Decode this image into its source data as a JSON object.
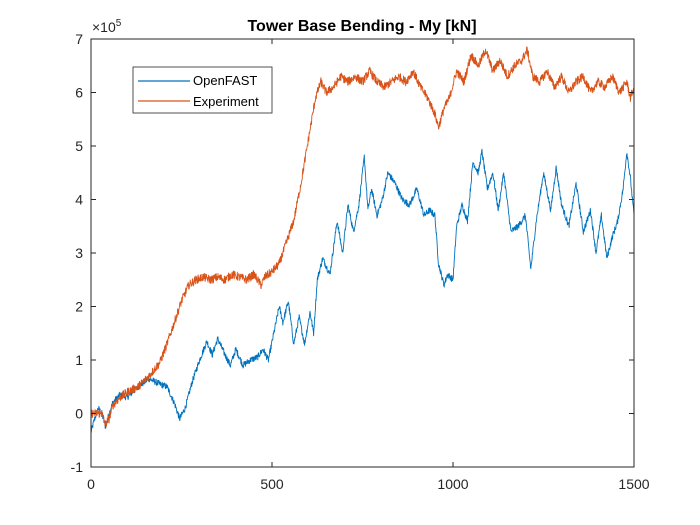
{
  "chart_data": {
    "type": "line",
    "title": "Tower Base Bending - My [kN]",
    "xlabel": "",
    "ylabel": "",
    "xlim": [
      0,
      1500
    ],
    "ylim": [
      -1,
      7
    ],
    "y_multiplier_label": "×10",
    "y_multiplier_exponent": "5",
    "x_ticks": [
      0,
      500,
      1000,
      1500
    ],
    "x_tick_labels": [
      "0",
      "500",
      "1000",
      "1500"
    ],
    "y_ticks": [
      -1,
      0,
      1,
      2,
      3,
      4,
      5,
      6,
      7
    ],
    "y_tick_labels": [
      "-1",
      "0",
      "1",
      "2",
      "3",
      "4",
      "5",
      "6",
      "7"
    ],
    "grid": false,
    "legend_position": "top-left",
    "series": [
      {
        "name": "OpenFAST",
        "color": "#0072BD",
        "noise": 0.12,
        "x": [
          0,
          10,
          20,
          30,
          40,
          50,
          60,
          80,
          100,
          130,
          160,
          190,
          210,
          230,
          245,
          260,
          280,
          300,
          320,
          335,
          350,
          370,
          385,
          400,
          420,
          440,
          460,
          475,
          490,
          505,
          520,
          530,
          545,
          560,
          575,
          590,
          605,
          615,
          625,
          640,
          660,
          680,
          695,
          710,
          725,
          740,
          755,
          765,
          775,
          790,
          805,
          820,
          840,
          860,
          880,
          900,
          920,
          935,
          950,
          960,
          975,
          985,
          1000,
          1010,
          1025,
          1040,
          1055,
          1070,
          1080,
          1095,
          1110,
          1125,
          1140,
          1160,
          1180,
          1200,
          1215,
          1230,
          1250,
          1270,
          1285,
          1300,
          1320,
          1340,
          1360,
          1380,
          1395,
          1410,
          1425,
          1440,
          1455,
          1470,
          1480,
          1490,
          1500
        ],
        "y": [
          -0.35,
          -0.1,
          0.1,
          0.0,
          -0.25,
          0.0,
          0.2,
          0.35,
          0.3,
          0.5,
          0.65,
          0.55,
          0.5,
          0.2,
          -0.1,
          0.1,
          0.6,
          1.0,
          1.35,
          1.1,
          1.4,
          1.1,
          0.9,
          1.2,
          0.9,
          1.0,
          1.05,
          1.2,
          1.0,
          1.5,
          2.0,
          1.7,
          2.1,
          1.3,
          1.8,
          1.3,
          1.9,
          1.5,
          2.5,
          2.9,
          2.6,
          3.6,
          3.0,
          3.9,
          3.4,
          3.9,
          4.8,
          3.8,
          4.2,
          3.7,
          4.0,
          4.5,
          4.3,
          4.0,
          3.9,
          4.2,
          3.7,
          3.8,
          3.7,
          2.8,
          2.4,
          2.6,
          2.5,
          3.5,
          3.9,
          3.6,
          4.7,
          4.5,
          4.9,
          4.2,
          4.5,
          3.8,
          4.5,
          3.4,
          3.5,
          3.7,
          2.7,
          3.6,
          4.5,
          3.8,
          4.6,
          3.9,
          3.5,
          4.3,
          3.4,
          3.8,
          3.0,
          3.7,
          2.9,
          3.3,
          3.6,
          4.2,
          4.9,
          4.4,
          3.7
        ]
      },
      {
        "name": "Experiment",
        "color": "#D95319",
        "noise": 0.16,
        "x": [
          0,
          20,
          30,
          40,
          50,
          60,
          80,
          100,
          130,
          160,
          190,
          210,
          230,
          250,
          270,
          290,
          310,
          330,
          350,
          370,
          390,
          410,
          430,
          450,
          470,
          480,
          500,
          520,
          540,
          560,
          580,
          600,
          620,
          635,
          650,
          670,
          690,
          710,
          730,
          750,
          770,
          790,
          810,
          830,
          850,
          870,
          890,
          910,
          930,
          950,
          960,
          975,
          990,
          1010,
          1030,
          1050,
          1070,
          1090,
          1110,
          1130,
          1150,
          1170,
          1190,
          1205,
          1220,
          1240,
          1260,
          1280,
          1300,
          1320,
          1340,
          1360,
          1380,
          1400,
          1420,
          1440,
          1460,
          1480,
          1490,
          1500
        ],
        "y": [
          0.0,
          0.0,
          0.0,
          -0.2,
          -0.1,
          0.15,
          0.3,
          0.4,
          0.5,
          0.7,
          0.95,
          1.3,
          1.7,
          2.1,
          2.4,
          2.5,
          2.55,
          2.5,
          2.55,
          2.5,
          2.6,
          2.55,
          2.5,
          2.6,
          2.4,
          2.55,
          2.65,
          2.8,
          3.2,
          3.6,
          4.3,
          5.1,
          5.9,
          6.2,
          6.0,
          6.1,
          6.3,
          6.2,
          6.3,
          6.2,
          6.4,
          6.2,
          6.1,
          6.2,
          6.3,
          6.2,
          6.4,
          6.1,
          5.9,
          5.6,
          5.35,
          5.7,
          5.9,
          6.4,
          6.2,
          6.7,
          6.5,
          6.8,
          6.4,
          6.6,
          6.3,
          6.5,
          6.6,
          6.8,
          6.3,
          6.2,
          6.4,
          6.1,
          6.3,
          6.0,
          6.2,
          6.3,
          6.0,
          6.2,
          6.1,
          6.3,
          6.0,
          6.2,
          5.9,
          6.1
        ]
      }
    ]
  }
}
